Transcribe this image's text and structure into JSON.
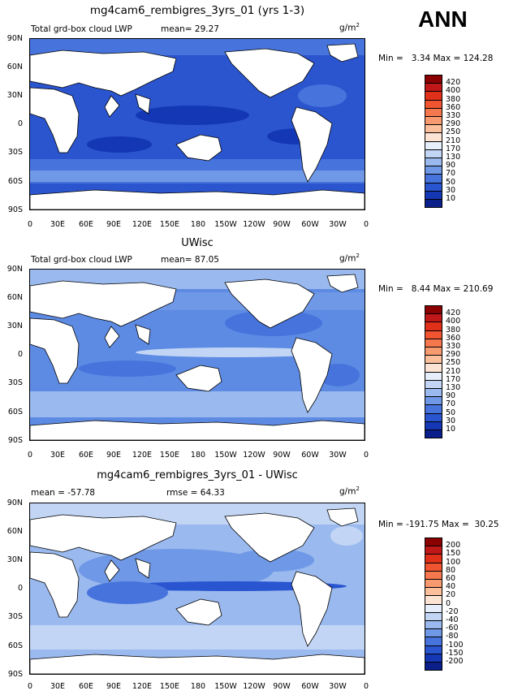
{
  "header": {
    "season": "ANN"
  },
  "panels": [
    {
      "id": "p1",
      "title": "mg4cam6_rembigres_3yrs_01 (yrs 1-3)",
      "left_label": "Total grd-box cloud LWP",
      "mean_text": "mean=  29.27",
      "rmse_text": "",
      "units": "g/m",
      "units_sup": "2",
      "stats": "Min =   3.34 Max = 124.28",
      "colorbar": {
        "levels": [
          "420",
          "400",
          "380",
          "360",
          "330",
          "290",
          "250",
          "210",
          "170",
          "130",
          "90",
          "70",
          "50",
          "30",
          "10"
        ],
        "colors": [
          "#8b0000",
          "#c01818",
          "#e0301a",
          "#f05430",
          "#f5774e",
          "#f89a70",
          "#fbbf9b",
          "#fde3d3",
          "#e6eefb",
          "#c2d5f5",
          "#9ab9ee",
          "#6f98e6",
          "#4774dc",
          "#2a55d0",
          "#1438b5",
          "#0a1f8a"
        ]
      },
      "map": {
        "base": "#2b55cf"
      }
    },
    {
      "id": "p2",
      "title": "UWisc",
      "left_label": "Total grd-box cloud LWP",
      "mean_text": "mean=  87.05",
      "rmse_text": "",
      "units": "g/m",
      "units_sup": "2",
      "stats": "Min =   8.44 Max = 210.69",
      "colorbar": {
        "levels": [
          "420",
          "400",
          "380",
          "360",
          "330",
          "290",
          "250",
          "210",
          "170",
          "130",
          "90",
          "70",
          "50",
          "30",
          "10"
        ],
        "colors": [
          "#8b0000",
          "#c01818",
          "#e0301a",
          "#f05430",
          "#f5774e",
          "#f89a70",
          "#fbbf9b",
          "#fde3d3",
          "#e6eefb",
          "#c2d5f5",
          "#9ab9ee",
          "#6f98e6",
          "#4774dc",
          "#2a55d0",
          "#1438b5",
          "#0a1f8a"
        ]
      },
      "map": {
        "base": "#5d8be4"
      }
    },
    {
      "id": "p3",
      "title": "mg4cam6_rembigres_3yrs_01 - UWisc",
      "left_label": "mean = -57.78",
      "mean_text": "",
      "rmse_text": "rmse =  64.33",
      "units": "g/m",
      "units_sup": "2",
      "stats": "Min = -191.75 Max =  30.25",
      "colorbar": {
        "levels": [
          "200",
          "150",
          "100",
          "80",
          "60",
          "40",
          "20",
          "0",
          "-20",
          "-40",
          "-60",
          "-80",
          "-100",
          "-150",
          "-200"
        ],
        "colors": [
          "#8b0000",
          "#c01818",
          "#e0301a",
          "#f05430",
          "#f5774e",
          "#f89a70",
          "#fbbf9b",
          "#fde3d3",
          "#e6eefb",
          "#c2d5f5",
          "#9ab9ee",
          "#6f98e6",
          "#4774dc",
          "#2a55d0",
          "#1438b5",
          "#0a1f8a"
        ]
      },
      "map": {
        "base": "#9ab9ee"
      }
    }
  ],
  "axes": {
    "lat_ticks": [
      "90N",
      "60N",
      "30N",
      "0",
      "30S",
      "60S",
      "90S"
    ],
    "lon_ticks": [
      "0",
      "30E",
      "60E",
      "90E",
      "120E",
      "150E",
      "180",
      "150W",
      "120W",
      "90W",
      "60W",
      "30W",
      "0"
    ]
  }
}
